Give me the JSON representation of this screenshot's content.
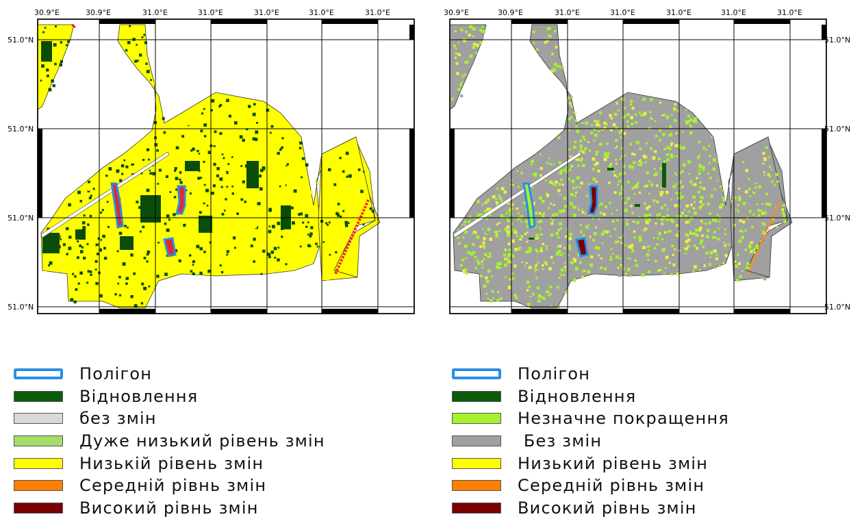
{
  "maps": [
    {
      "id": "left",
      "lon_labels": [
        "30.9°E",
        "30.9°E",
        "31.0°E",
        "31.0°E",
        "31.0°E",
        "31.0°E",
        "31.0°E"
      ],
      "lat_labels": [
        "51.0°N",
        "51.0°N",
        "51.0°N",
        "51.0°N"
      ],
      "lat_side": "left",
      "base_color": "#ffff00",
      "scatter_colors": [
        "#0a4d0a",
        "#0a4d0a",
        "#0a4d0a",
        "#ffff00"
      ]
    },
    {
      "id": "right",
      "lon_labels": [
        "30.9°E",
        "30.9°E",
        "31.0°E",
        "31.0°E",
        "31.0°E",
        "31.0°E",
        "31.0°E"
      ],
      "lat_labels": [
        "51.0°N",
        "51.0°N",
        "51.0°N",
        "51.0°N"
      ],
      "lat_side": "right",
      "base_color": "#a0a0a0",
      "scatter_colors": [
        "#a6f22e",
        "#a6f22e",
        "#f0f03c",
        "#a0a0a0",
        "#a6f22e"
      ]
    }
  ],
  "legends": [
    {
      "id": "left",
      "items": [
        {
          "label": "Полігон",
          "color": "#ffffff",
          "type": "outline"
        },
        {
          "label": "Відновлення",
          "color": "#0a5c0a",
          "type": "fill"
        },
        {
          "label": "без змін",
          "color": "#d8d8d8",
          "type": "fill"
        },
        {
          "label": "Дуже низький рівень змін",
          "color": "#a3dd6b",
          "type": "fill"
        },
        {
          "label": "Низькій рівень змін",
          "color": "#ffff00",
          "type": "fill"
        },
        {
          "label": "Середній рівнь змін",
          "color": "#ff7f00",
          "type": "fill"
        },
        {
          "label": "Високий рівнь змін",
          "color": "#7a0000",
          "type": "fill"
        }
      ]
    },
    {
      "id": "right",
      "items": [
        {
          "label": "Полігон",
          "color": "#ffffff",
          "type": "outline"
        },
        {
          "label": "Відновлення",
          "color": "#0a5c0a",
          "type": "fill"
        },
        {
          "label": "Незначне покращення",
          "color": "#a6f22e",
          "type": "fill"
        },
        {
          "label": " Без змін",
          "color": "#a0a0a0",
          "type": "fill"
        },
        {
          "label": "Низький рівень змін",
          "color": "#ffff00",
          "type": "fill"
        },
        {
          "label": "Середній рівнь змін",
          "color": "#ff7f00",
          "type": "fill"
        },
        {
          "label": "Високий рівнь змін",
          "color": "#7a0000",
          "type": "fill"
        }
      ]
    }
  ]
}
